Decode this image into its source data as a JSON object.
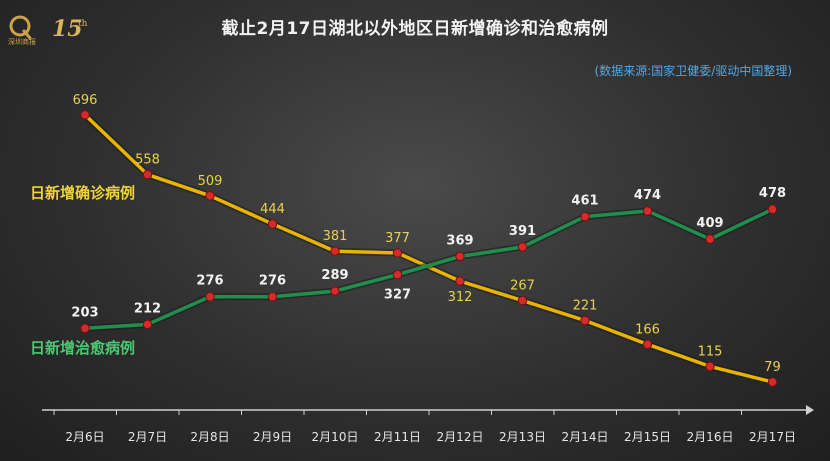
{
  "logo": {
    "brand_small": "深圳商报",
    "anniv": "15",
    "anniv_suffix": "th"
  },
  "colors": {
    "confirmed": "#e8b400",
    "recovered": "#1f8f4e",
    "text": "#f2f2f2",
    "axis": "#bbbbbb"
  },
  "chart_data": {
    "type": "line",
    "title": "截止2月17日湖北以外地区日新增确诊和治愈病例",
    "source": "(数据来源:国家卫健委/驱动中国整理)",
    "x": [
      "2月6日",
      "2月7日",
      "2月8日",
      "2月9日",
      "2月10日",
      "2月11日",
      "2月12日",
      "2月13日",
      "2月14日",
      "2月15日",
      "2月16日",
      "2月17日"
    ],
    "series": [
      {
        "name": "日新增确诊病例",
        "color": "#e8b400",
        "values": [
          696,
          558,
          509,
          444,
          381,
          377,
          312,
          267,
          221,
          166,
          115,
          79
        ]
      },
      {
        "name": "日新增治愈病例",
        "color": "#1f8f4e",
        "values": [
          203,
          212,
          276,
          276,
          289,
          327,
          369,
          391,
          461,
          474,
          409,
          478
        ]
      }
    ]
  }
}
